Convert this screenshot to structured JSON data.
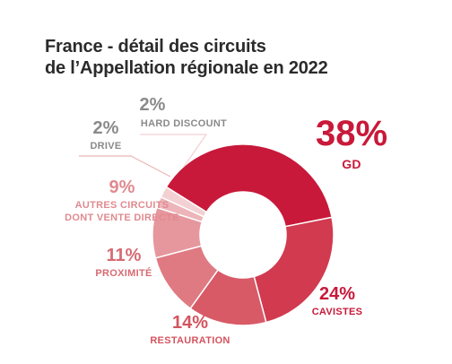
{
  "title_line1": "France - détail des circuits",
  "title_line2": "de l’Appellation régionale en 2022",
  "chart_data": {
    "type": "pie",
    "title": "France - détail des circuits de l’Appellation régionale en 2022",
    "unit": "%",
    "slices": [
      {
        "name": "GD",
        "value": 38,
        "value_label": "38%",
        "color": "#c8193a",
        "label_color": "#c8193a"
      },
      {
        "name": "CAVISTES",
        "value": 24,
        "value_label": "24%",
        "color": "#d13a4f",
        "label_color": "#c8193a"
      },
      {
        "name": "RESTAURATION",
        "value": 14,
        "value_label": "14%",
        "color": "#d85a67",
        "label_color": "#d4545f"
      },
      {
        "name": "PROXIMITÉ",
        "value": 11,
        "value_label": "11%",
        "color": "#df7a83",
        "label_color": "#d86a72"
      },
      {
        "name": "AUTRES CIRCUITS|DONT VENTE DIRECTE",
        "value": 9,
        "value_label": "9%",
        "color": "#e6979d",
        "label_color": "#e08a90"
      },
      {
        "name": "DRIVE",
        "value": 2,
        "value_label": "2%",
        "color": "#edb5b9",
        "label_color": "#8a8a8a"
      },
      {
        "name": "HARD DISCOUNT",
        "value": 2,
        "value_label": "2%",
        "color": "#f3d0d2",
        "label_color": "#8a8a8a"
      }
    ]
  }
}
